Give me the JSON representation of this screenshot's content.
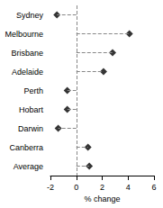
{
  "chart_data": {
    "type": "scatter",
    "orientation": "horizontal",
    "categories": [
      "Sydney",
      "Melbourne",
      "Brisbane",
      "Adelaide",
      "Perth",
      "Hobart",
      "Darwin",
      "Canberra",
      "Average"
    ],
    "values": [
      -1.5,
      4.1,
      2.8,
      2.1,
      -0.7,
      -0.7,
      -1.4,
      0.9,
      1.0
    ],
    "color": "#000000",
    "marker": "diamond",
    "line_style": "dashed",
    "xlabel": "% change",
    "xlim": [
      -2,
      6
    ],
    "xticks": [
      -2,
      0,
      2,
      4,
      6
    ],
    "grid": false
  }
}
